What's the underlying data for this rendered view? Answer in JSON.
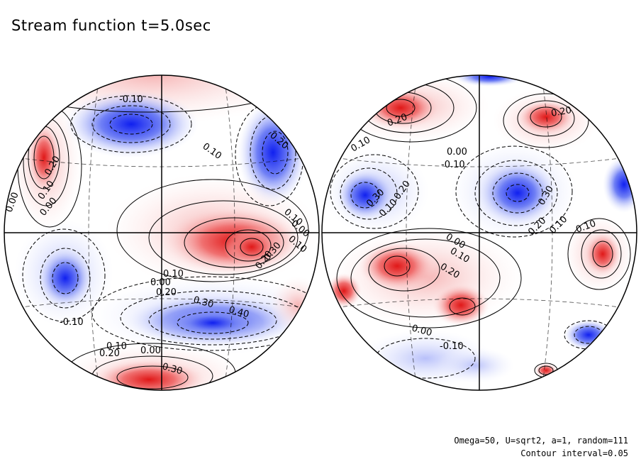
{
  "title": "Stream function t=5.0sec",
  "footer": {
    "params": "Omega=50, U=sqrt2, a=1, random=111",
    "contour_interval": "Contour interval=0.05"
  },
  "colors": {
    "positive": "#e8282a",
    "negative": "#2233ee",
    "neutral": "#ffffff"
  },
  "left_globe": {
    "labels": [
      "-0.10",
      "0.20",
      "0.10",
      "0.00",
      "0.20",
      "0.10",
      "0.10",
      "0.00",
      "0.10",
      "0.20",
      "0.30",
      "0.10",
      "0.00",
      "0.20",
      "0.30",
      "0.40",
      "-0.10",
      "0.10",
      "0.20",
      "0.00",
      "0.30",
      "0.00"
    ]
  },
  "right_globe": {
    "labels": [
      "0.20",
      "0.10",
      "0.20",
      "0.00",
      "-0.10",
      "0.30",
      "0.10",
      "0.20",
      "0.30",
      "0.20",
      "0.10",
      "0.10",
      "0.00",
      "0.10",
      "0.20",
      "0.00",
      "-0.10"
    ]
  }
}
